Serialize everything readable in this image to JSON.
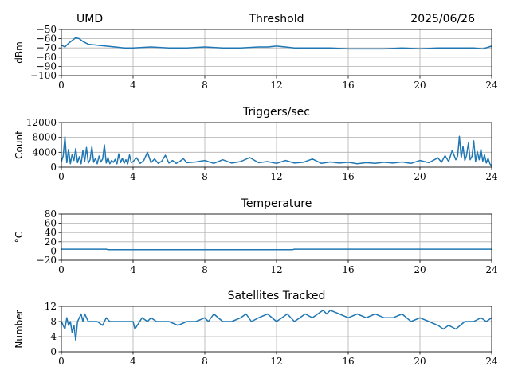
{
  "header": {
    "left": "UMD",
    "right": "2025/06/26"
  },
  "chart_data": [
    {
      "type": "line",
      "title": "Threshold",
      "xlabel": "",
      "ylabel": "dBm",
      "xlim": [
        0,
        24
      ],
      "ylim": [
        -100,
        -50
      ],
      "xticks": [
        0,
        4,
        8,
        12,
        16,
        20,
        24
      ],
      "yticks": [
        -100,
        -90,
        -80,
        -70,
        -60,
        -50
      ],
      "grid": true,
      "series": [
        {
          "x": [
            0,
            0.2,
            0.4,
            0.6,
            0.8,
            1.0,
            1.2,
            1.5,
            2.0,
            2.5,
            3.0,
            3.5,
            4.0,
            5.0,
            6.0,
            7.0,
            8.0,
            9.0,
            10.0,
            11.0,
            11.5,
            12.0,
            12.5,
            13.0,
            14.0,
            15.0,
            16.0,
            17.0,
            18.0,
            19.0,
            20.0,
            21.0,
            22.0,
            23.0,
            23.5,
            24.0
          ],
          "y": [
            -67,
            -69,
            -65,
            -62,
            -59,
            -60,
            -63,
            -66,
            -67,
            -68,
            -69,
            -70,
            -70,
            -69,
            -70,
            -70,
            -69,
            -70,
            -70,
            -69,
            -69,
            -68,
            -69,
            -70,
            -70,
            -70,
            -71,
            -71,
            -71,
            -70,
            -71,
            -70,
            -70,
            -70,
            -71,
            -68
          ]
        }
      ]
    },
    {
      "type": "line",
      "title": "Triggers/sec",
      "xlabel": "",
      "ylabel": "Count",
      "xlim": [
        0,
        24
      ],
      "ylim": [
        0,
        12000
      ],
      "xticks": [
        0,
        4,
        8,
        12,
        16,
        20,
        24
      ],
      "yticks": [
        0,
        4000,
        8000,
        12000
      ],
      "grid": true,
      "series": [
        {
          "x": [
            0,
            0.1,
            0.2,
            0.3,
            0.4,
            0.5,
            0.6,
            0.7,
            0.8,
            0.9,
            1.0,
            1.1,
            1.2,
            1.3,
            1.4,
            1.5,
            1.6,
            1.7,
            1.8,
            1.9,
            2.0,
            2.1,
            2.2,
            2.3,
            2.4,
            2.5,
            2.6,
            2.7,
            2.8,
            2.9,
            3.0,
            3.1,
            3.2,
            3.3,
            3.4,
            3.5,
            3.6,
            3.7,
            3.8,
            3.9,
            4.0,
            4.2,
            4.4,
            4.6,
            4.8,
            5.0,
            5.2,
            5.4,
            5.6,
            5.8,
            6.0,
            6.2,
            6.4,
            6.6,
            6.8,
            7.0,
            7.5,
            8.0,
            8.5,
            9.0,
            9.5,
            10.0,
            10.5,
            11.0,
            11.5,
            12.0,
            12.5,
            13.0,
            13.5,
            14.0,
            14.5,
            15.0,
            15.5,
            16.0,
            16.5,
            17.0,
            17.5,
            18.0,
            18.5,
            19.0,
            19.5,
            20.0,
            20.5,
            21.0,
            21.2,
            21.4,
            21.6,
            21.8,
            22.0,
            22.1,
            22.2,
            22.3,
            22.4,
            22.5,
            22.6,
            22.7,
            22.8,
            22.9,
            23.0,
            23.1,
            23.2,
            23.3,
            23.4,
            23.5,
            23.6,
            23.7,
            23.8,
            23.9,
            24.0
          ],
          "y": [
            1500,
            3000,
            8200,
            1200,
            4800,
            900,
            3500,
            1800,
            5000,
            1200,
            2800,
            900,
            4500,
            1500,
            5300,
            1100,
            2000,
            5500,
            1300,
            2400,
            900,
            3000,
            1400,
            2200,
            6000,
            1100,
            2600,
            900,
            1800,
            1300,
            2100,
            900,
            3600,
            1200,
            2400,
            1000,
            2000,
            900,
            3300,
            1200,
            1500,
            2500,
            1000,
            1800,
            4000,
            1200,
            2200,
            1000,
            1600,
            3200,
            1100,
            1800,
            1000,
            1500,
            2300,
            1200,
            1400,
            1800,
            1000,
            2000,
            1100,
            1500,
            2600,
            1200,
            1500,
            1000,
            1800,
            1100,
            1300,
            2200,
            1000,
            1400,
            1100,
            1300,
            900,
            1200,
            1000,
            1300,
            1100,
            1400,
            1000,
            1800,
            1200,
            2500,
            1300,
            3100,
            1500,
            4500,
            2000,
            3000,
            8300,
            2500,
            5600,
            1800,
            3200,
            6500,
            2000,
            2900,
            7100,
            1500,
            4200,
            2000,
            4800,
            1600,
            3300,
            1100,
            2400,
            900,
            300
          ]
        }
      ]
    },
    {
      "type": "line",
      "title": "Temperature",
      "xlabel": "",
      "ylabel": "°C",
      "xlim": [
        0,
        24
      ],
      "ylim": [
        -20,
        80
      ],
      "xticks": [
        0,
        4,
        8,
        12,
        16,
        20,
        24
      ],
      "yticks": [
        -20,
        0,
        20,
        40,
        60,
        80
      ],
      "grid": true,
      "series": [
        {
          "x": [
            0,
            2.5,
            2.6,
            12.9,
            13.0,
            24
          ],
          "y": [
            4,
            4,
            3,
            3,
            4,
            4
          ]
        }
      ]
    },
    {
      "type": "line",
      "title": "Satellites Tracked",
      "xlabel": "",
      "ylabel": "Number",
      "xlim": [
        0,
        24
      ],
      "ylim": [
        0,
        12
      ],
      "xticks": [
        0,
        4,
        8,
        12,
        16,
        20,
        24
      ],
      "yticks": [
        0,
        4,
        8,
        12
      ],
      "grid": true,
      "series": [
        {
          "x": [
            0,
            0.2,
            0.3,
            0.4,
            0.5,
            0.6,
            0.7,
            0.8,
            0.9,
            1.0,
            1.1,
            1.2,
            1.3,
            1.5,
            1.7,
            2.0,
            2.3,
            2.5,
            2.7,
            3.0,
            3.3,
            3.5,
            4.0,
            4.1,
            4.5,
            4.8,
            5.0,
            5.3,
            5.5,
            6.0,
            6.5,
            7.0,
            7.5,
            8.0,
            8.2,
            8.5,
            9.0,
            9.5,
            10.0,
            10.3,
            10.6,
            11.0,
            11.5,
            12.0,
            12.3,
            12.6,
            13.0,
            13.3,
            13.6,
            14.0,
            14.3,
            14.6,
            14.8,
            15.0,
            15.5,
            16.0,
            16.5,
            17.0,
            17.5,
            18.0,
            18.5,
            19.0,
            19.5,
            20.0,
            20.5,
            21.0,
            21.3,
            21.6,
            22.0,
            22.5,
            23.0,
            23.4,
            23.7,
            24.0
          ],
          "y": [
            8,
            6,
            9,
            7,
            8,
            5,
            7,
            3,
            8,
            9,
            10,
            8,
            10,
            8,
            8,
            8,
            7,
            9,
            8,
            8,
            8,
            8,
            8,
            6,
            9,
            8,
            9,
            8,
            8,
            8,
            7,
            8,
            8,
            9,
            8,
            10,
            8,
            8,
            9,
            10,
            8,
            9,
            10,
            8,
            9,
            10,
            8,
            9,
            10,
            9,
            10,
            11,
            10,
            11,
            10,
            9,
            10,
            9,
            10,
            9,
            9,
            10,
            8,
            9,
            8,
            7,
            6,
            7,
            6,
            8,
            8,
            9,
            8,
            9
          ]
        }
      ]
    }
  ]
}
